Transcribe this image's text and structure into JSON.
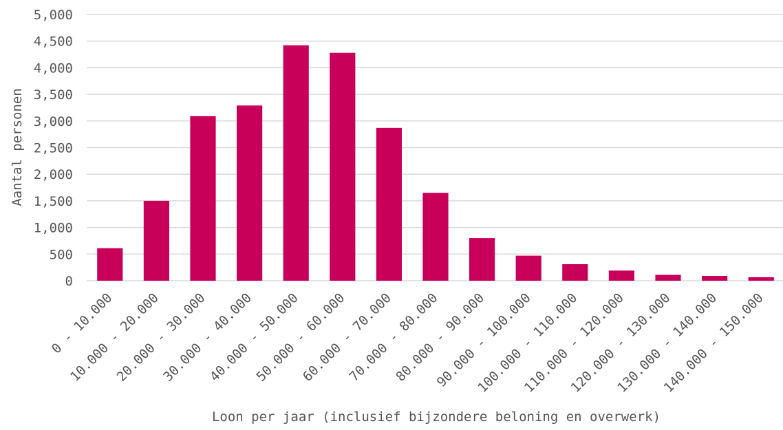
{
  "chart_data": {
    "type": "bar",
    "title": "",
    "xlabel": "Loon per jaar (inclusief bijzondere beloning en overwerk)",
    "ylabel": "Aantal personen",
    "categories": [
      "0 - 10.000",
      "10.000 - 20.000",
      "20.000 - 30.000",
      "30.000 - 40.000",
      "40.000 - 50.000",
      "50.000 - 60.000",
      "60.000 - 70.000",
      "70.000 - 80.000",
      "80.000 - 90.000",
      "90.000 - 100.000",
      "100.000 - 110.000",
      "110.000 - 120.000",
      "120.000 - 130.000",
      "130.000 - 140.000",
      "140.000 - 150.000"
    ],
    "values": [
      610,
      1500,
      3090,
      3290,
      4420,
      4280,
      2870,
      1650,
      800,
      470,
      310,
      190,
      110,
      90,
      65
    ],
    "ylim": [
      0,
      5000
    ],
    "yticks": [
      0,
      500,
      1000,
      1500,
      2000,
      2500,
      3000,
      3500,
      4000,
      4500,
      5000
    ],
    "ytick_labels": [
      "0",
      "500",
      "1,000",
      "1,500",
      "2,000",
      "2,500",
      "3,000",
      "3,500",
      "4,000",
      "4,500",
      "5,000"
    ],
    "grid": true,
    "legend": "none",
    "bar_color": "#c8005a"
  }
}
